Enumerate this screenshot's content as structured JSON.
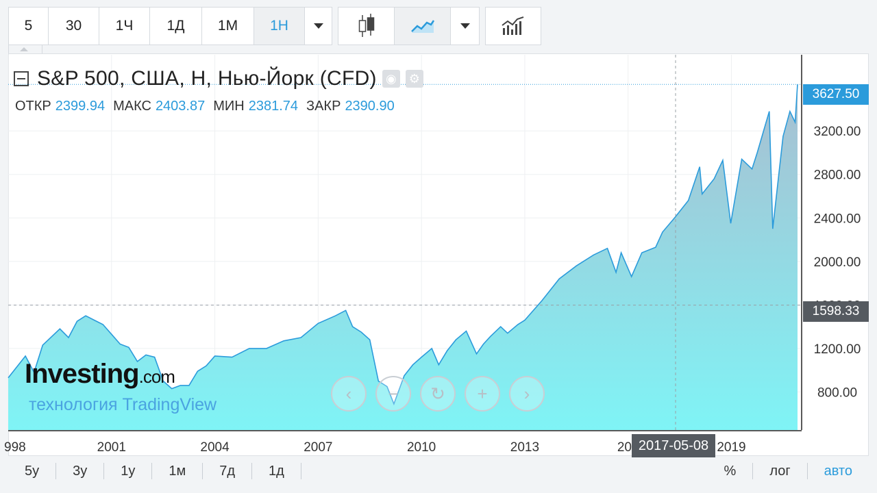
{
  "toolbar": {
    "intervals": [
      "5",
      "30",
      "1Ч",
      "1Д",
      "1М",
      "1Н"
    ],
    "active_interval": "1Н"
  },
  "legend": {
    "title": "S&P 500, США, Н, Нью-Йорк (CFD)",
    "open_label": "ОТКР",
    "open_value": "2399.94",
    "high_label": "МАКС",
    "high_value": "2403.87",
    "low_label": "МИН",
    "low_value": "2381.74",
    "close_label": "ЗАКР",
    "close_value": "2390.90"
  },
  "price_tag_last": "3627.50",
  "price_tag_cursor": "1598.33",
  "date_tag": "2017-05-08",
  "watermark": {
    "brand": "Investing",
    "brand_suffix": ".com",
    "sub": "технология TradingView"
  },
  "footer": {
    "ranges": [
      "5у",
      "3у",
      "1у",
      "1м",
      "7д",
      "1д"
    ],
    "scale_options": [
      "%",
      "лог",
      "авто"
    ],
    "active_scale": "авто"
  },
  "colors": {
    "line": "#2b9bdb",
    "fill_top": "#a9bed0",
    "fill_bottom": "#7ff4f6",
    "accent": "#2b9bdb"
  },
  "chart_data": {
    "type": "area",
    "series": [
      {
        "values": [
          [
            1998.0,
            930
          ],
          [
            1998.5,
            1130
          ],
          [
            1998.75,
            980
          ],
          [
            1999.0,
            1230
          ],
          [
            1999.5,
            1380
          ],
          [
            1999.75,
            1300
          ],
          [
            2000.0,
            1450
          ],
          [
            2000.25,
            1500
          ],
          [
            2000.5,
            1460
          ],
          [
            2000.75,
            1420
          ],
          [
            2001.0,
            1330
          ],
          [
            2001.25,
            1240
          ],
          [
            2001.5,
            1210
          ],
          [
            2001.75,
            1080
          ],
          [
            2002.0,
            1140
          ],
          [
            2002.25,
            1120
          ],
          [
            2002.5,
            900
          ],
          [
            2002.75,
            830
          ],
          [
            2003.0,
            860
          ],
          [
            2003.25,
            860
          ],
          [
            2003.5,
            990
          ],
          [
            2003.75,
            1040
          ],
          [
            2004.0,
            1130
          ],
          [
            2004.5,
            1120
          ],
          [
            2005.0,
            1200
          ],
          [
            2005.5,
            1200
          ],
          [
            2006.0,
            1270
          ],
          [
            2006.5,
            1300
          ],
          [
            2007.0,
            1430
          ],
          [
            2007.5,
            1500
          ],
          [
            2007.8,
            1550
          ],
          [
            2008.0,
            1400
          ],
          [
            2008.25,
            1350
          ],
          [
            2008.5,
            1280
          ],
          [
            2008.75,
            900
          ],
          [
            2009.0,
            850
          ],
          [
            2009.2,
            690
          ],
          [
            2009.5,
            950
          ],
          [
            2009.75,
            1050
          ],
          [
            2010.0,
            1120
          ],
          [
            2010.3,
            1200
          ],
          [
            2010.5,
            1050
          ],
          [
            2010.75,
            1180
          ],
          [
            2011.0,
            1280
          ],
          [
            2011.3,
            1360
          ],
          [
            2011.6,
            1150
          ],
          [
            2011.8,
            1240
          ],
          [
            2012.0,
            1310
          ],
          [
            2012.3,
            1400
          ],
          [
            2012.5,
            1340
          ],
          [
            2012.8,
            1420
          ],
          [
            2013.0,
            1460
          ],
          [
            2013.5,
            1640
          ],
          [
            2014.0,
            1840
          ],
          [
            2014.5,
            1960
          ],
          [
            2015.0,
            2060
          ],
          [
            2015.4,
            2120
          ],
          [
            2015.65,
            1900
          ],
          [
            2015.8,
            2080
          ],
          [
            2016.1,
            1860
          ],
          [
            2016.4,
            2080
          ],
          [
            2016.8,
            2130
          ],
          [
            2017.0,
            2270
          ],
          [
            2017.35,
            2400
          ],
          [
            2017.75,
            2560
          ],
          [
            2018.08,
            2870
          ],
          [
            2018.15,
            2620
          ],
          [
            2018.5,
            2760
          ],
          [
            2018.75,
            2930
          ],
          [
            2018.98,
            2350
          ],
          [
            2019.3,
            2940
          ],
          [
            2019.6,
            2850
          ],
          [
            2019.75,
            3000
          ],
          [
            2020.1,
            3380
          ],
          [
            2020.2,
            2300
          ],
          [
            2020.5,
            3150
          ],
          [
            2020.7,
            3380
          ],
          [
            2020.85,
            3280
          ],
          [
            2020.92,
            3627.5
          ]
        ]
      }
    ],
    "x_ticks": [
      "998",
      "2001",
      "2004",
      "2007",
      "2010",
      "2013",
      "201",
      "2019"
    ],
    "y_ticks": [
      "800.00",
      "1200.00",
      "1600.00",
      "2000.00",
      "2400.00",
      "2800.00",
      "3200.00"
    ],
    "ylim": [
      450,
      3900
    ],
    "xlim": [
      1998.0,
      2021.0
    ],
    "grid": true
  }
}
